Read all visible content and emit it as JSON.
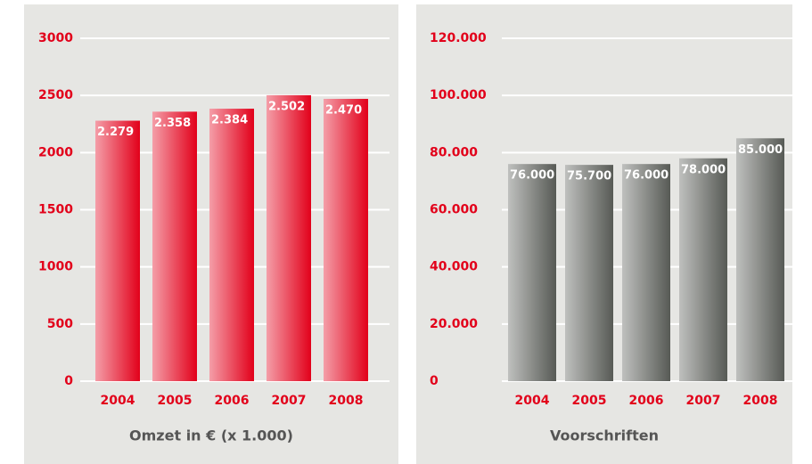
{
  "chart_data": [
    {
      "type": "bar",
      "title": "Omzet in € (x 1.000)",
      "categories": [
        "2004",
        "2005",
        "2006",
        "2007",
        "2008"
      ],
      "values": [
        2279,
        2358,
        2384,
        2502,
        2470
      ],
      "value_labels": [
        "2.279",
        "2.358",
        "2.384",
        "2.502",
        "2.470"
      ],
      "color": "#e2001a",
      "ylim": [
        0,
        3000
      ],
      "yticks": [
        0,
        500,
        1000,
        1500,
        2000,
        2500,
        3000
      ],
      "grid": true
    },
    {
      "type": "bar",
      "title": "Voorschriften",
      "categories": [
        "2004",
        "2005",
        "2006",
        "2007",
        "2008"
      ],
      "values": [
        76000,
        75700,
        76000,
        78000,
        85000
      ],
      "value_labels": [
        "76.000",
        "75.700",
        "76.000",
        "78.000",
        "85.000"
      ],
      "color": "#575a55",
      "ylim": [
        0,
        120000
      ],
      "yticks": [
        0,
        {
          "value": 20000,
          "label": "20.000"
        },
        {
          "value": 40000,
          "label": "40.000"
        },
        {
          "value": 60000,
          "label": "60.000"
        },
        {
          "value": 80000,
          "label": "80.000"
        },
        {
          "value": 100000,
          "label": "100.000"
        },
        {
          "value": 120000,
          "label": "120.000"
        }
      ],
      "grid": true
    }
  ]
}
